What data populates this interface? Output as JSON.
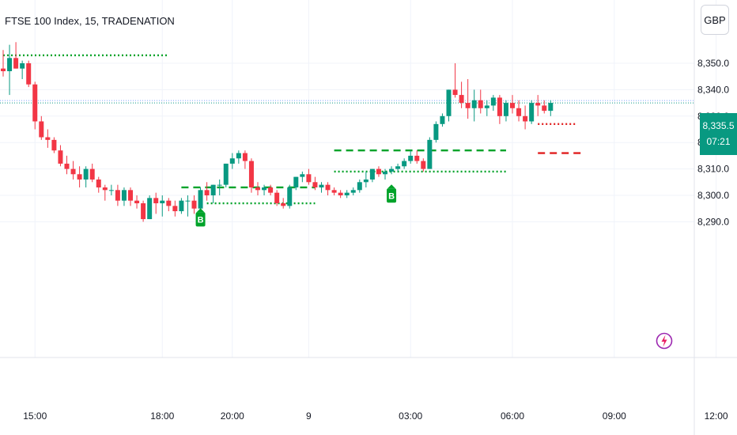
{
  "header": {
    "title": "FTSE 100 Index, 15, TRADENATION",
    "currency": "GBP"
  },
  "last_price": {
    "value": "8,335.5",
    "countdown": "07:21"
  },
  "colors": {
    "up": "#089981",
    "down": "#f23645",
    "signal_green": "#00a32a",
    "signal_red": "#e01e1e",
    "price_line": "#2962ff"
  },
  "icons": {
    "alert": "lightning-bolt-icon"
  },
  "chart_data": {
    "type": "candlestick",
    "title": "FTSE 100 Index, 15, TRADENATION",
    "ylim": [
      8283,
      8360
    ],
    "y_ticks": [
      "8,290.0",
      "8,300.0",
      "8,310.0",
      "8,320.0",
      "8,330.0",
      "8,340.0",
      "8,350.0"
    ],
    "y_tick_values": [
      8290,
      8300,
      8310,
      8320,
      8330,
      8340,
      8350
    ],
    "x_ticks": [
      "15:00",
      "18:00",
      "20:00",
      "9",
      "03:00",
      "06:00",
      "09:00",
      "12:00"
    ],
    "x_tick_bar_index": [
      5,
      25,
      36,
      48,
      64,
      80,
      96,
      112
    ],
    "candles": [
      [
        8348,
        8355,
        8345,
        8347
      ],
      [
        8347,
        8357,
        8338,
        8352
      ],
      [
        8352,
        8358,
        8348,
        8348
      ],
      [
        8348,
        8351,
        8344,
        8350
      ],
      [
        8350,
        8351,
        8341,
        8342
      ],
      [
        8342,
        8343,
        8325,
        8328
      ],
      [
        8328,
        8330,
        8321,
        8322
      ],
      [
        8322,
        8325,
        8318,
        8321
      ],
      [
        8321,
        8322,
        8316,
        8317
      ],
      [
        8317,
        8319,
        8311,
        8312
      ],
      [
        8312,
        8315,
        8308,
        8310
      ],
      [
        8310,
        8313,
        8306,
        8308
      ],
      [
        8308,
        8311,
        8303,
        8306
      ],
      [
        8306,
        8311,
        8303,
        8310
      ],
      [
        8310,
        8312,
        8305,
        8306
      ],
      [
        8306,
        8307,
        8301,
        8303
      ],
      [
        8303,
        8304,
        8298,
        8302
      ],
      [
        8302,
        8304,
        8300,
        8302
      ],
      [
        8302,
        8304,
        8296,
        8298
      ],
      [
        8298,
        8303,
        8296,
        8302
      ],
      [
        8302,
        8303,
        8296,
        8298
      ],
      [
        8298,
        8300,
        8295,
        8297
      ],
      [
        8297,
        8298,
        8290,
        8291
      ],
      [
        8291,
        8300,
        8291,
        8299
      ],
      [
        8299,
        8301,
        8293,
        8297
      ],
      [
        8297,
        8300,
        8292,
        8298
      ],
      [
        8298,
        8299,
        8294,
        8296
      ],
      [
        8296,
        8298,
        8292,
        8294
      ],
      [
        8294,
        8299,
        8293,
        8298
      ],
      [
        8298,
        8300,
        8292,
        8298
      ],
      [
        8298,
        8300,
        8293,
        8295
      ],
      [
        8295,
        8303,
        8294,
        8302
      ],
      [
        8302,
        8305,
        8298,
        8300
      ],
      [
        8300,
        8304,
        8297,
        8304
      ],
      [
        8304,
        8306,
        8300,
        8304
      ],
      [
        8304,
        8312,
        8303,
        8312
      ],
      [
        8312,
        8316,
        8310,
        8314
      ],
      [
        8314,
        8317,
        8312,
        8316
      ],
      [
        8316,
        8317,
        8310,
        8313
      ],
      [
        8313,
        8314,
        8301,
        8303
      ],
      [
        8303,
        8305,
        8300,
        8302
      ],
      [
        8302,
        8304,
        8300,
        8303
      ],
      [
        8303,
        8304,
        8300,
        8301
      ],
      [
        8301,
        8302,
        8296,
        8297
      ],
      [
        8297,
        8299,
        8295,
        8296
      ],
      [
        8296,
        8304,
        8295,
        8303
      ],
      [
        8303,
        8307,
        8302,
        8307
      ],
      [
        8307,
        8309,
        8305,
        8308
      ],
      [
        8308,
        8310,
        8304,
        8305
      ],
      [
        8305,
        8307,
        8302,
        8303
      ],
      [
        8303,
        8305,
        8301,
        8304
      ],
      [
        8304,
        8305,
        8300,
        8302
      ],
      [
        8302,
        8303,
        8300,
        8301
      ],
      [
        8301,
        8302,
        8299,
        8300
      ],
      [
        8300,
        8302,
        8299,
        8301
      ],
      [
        8301,
        8303,
        8300,
        8302
      ],
      [
        8302,
        8306,
        8301,
        8305
      ],
      [
        8305,
        8309,
        8303,
        8306
      ],
      [
        8306,
        8310,
        8305,
        8310
      ],
      [
        8310,
        8311,
        8307,
        8308
      ],
      [
        8308,
        8310,
        8306,
        8309
      ],
      [
        8309,
        8311,
        8308,
        8310
      ],
      [
        8310,
        8312,
        8309,
        8311
      ],
      [
        8311,
        8314,
        8310,
        8313
      ],
      [
        8313,
        8317,
        8312,
        8315
      ],
      [
        8315,
        8317,
        8312,
        8313
      ],
      [
        8313,
        8314,
        8309,
        8310
      ],
      [
        8310,
        8322,
        8310,
        8321
      ],
      [
        8321,
        8328,
        8320,
        8327
      ],
      [
        8327,
        8331,
        8326,
        8330
      ],
      [
        8330,
        8340,
        8328,
        8340
      ],
      [
        8340,
        8350,
        8337,
        8338
      ],
      [
        8338,
        8343,
        8333,
        8335
      ],
      [
        8335,
        8344,
        8329,
        8333
      ],
      [
        8333,
        8340,
        8328,
        8336
      ],
      [
        8336,
        8340,
        8331,
        8333
      ],
      [
        8333,
        8336,
        8330,
        8334
      ],
      [
        8334,
        8338,
        8332,
        8337
      ],
      [
        8337,
        8338,
        8327,
        8330
      ],
      [
        8330,
        8336,
        8328,
        8335
      ],
      [
        8335,
        8338,
        8331,
        8333
      ],
      [
        8333,
        8336,
        8328,
        8330
      ],
      [
        8330,
        8334,
        8325,
        8328
      ],
      [
        8328,
        8336,
        8327,
        8335
      ],
      [
        8335,
        8338,
        8330,
        8334
      ],
      [
        8334,
        8336,
        8331,
        8332
      ],
      [
        8332,
        8336,
        8330,
        8335
      ]
    ],
    "signals": [
      {
        "label": "B",
        "bar": 31,
        "price": 8296
      },
      {
        "label": "B",
        "bar": 61,
        "price": 8305
      }
    ],
    "levels": [
      {
        "color": "green",
        "style": "dotted",
        "price": 8353,
        "from_bar": 0,
        "to_bar": 26
      },
      {
        "color": "green",
        "style": "dashed",
        "price": 8303,
        "from_bar": 28,
        "to_bar": 49
      },
      {
        "color": "green",
        "style": "dotted",
        "price": 8297,
        "from_bar": 32,
        "to_bar": 49
      },
      {
        "color": "green",
        "style": "dashed",
        "price": 8317,
        "from_bar": 52,
        "to_bar": 79
      },
      {
        "color": "green",
        "style": "dotted",
        "price": 8309,
        "from_bar": 52,
        "to_bar": 79
      },
      {
        "color": "red",
        "style": "dashed",
        "price": 8316,
        "from_bar": 84,
        "to_bar": 91
      },
      {
        "color": "red",
        "style": "dotted",
        "price": 8327,
        "from_bar": 84,
        "to_bar": 90
      }
    ]
  }
}
